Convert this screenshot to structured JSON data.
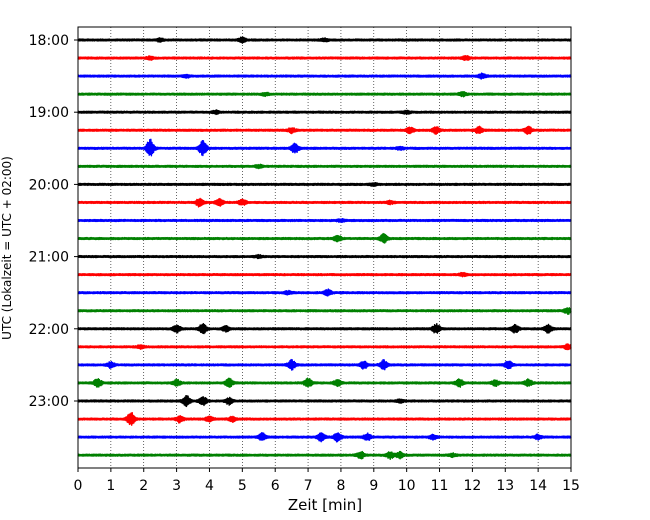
{
  "chart_data": {
    "type": "line",
    "xlabel": "Zeit  [min]",
    "ylabel": "UTC (Lokalzeit = UTC + 02:00)",
    "xlim": [
      0,
      15
    ],
    "x_ticks": [
      "0",
      "1",
      "2",
      "3",
      "4",
      "5",
      "6",
      "7",
      "8",
      "9",
      "10",
      "11",
      "12",
      "13",
      "14",
      "15"
    ],
    "y_ticks": [
      "18:00",
      "19:00",
      "20:00",
      "21:00",
      "22:00",
      "23:00"
    ],
    "grid": "vertical dotted",
    "trace_interval_min": 15,
    "trace_colors": [
      "#000000",
      "#ff0000",
      "#0000ff",
      "#008000"
    ],
    "traces": [
      {
        "start": "18:00",
        "color": "#000000",
        "events": [
          [
            5.0,
            0.25
          ],
          [
            2.5,
            0.15
          ],
          [
            7.5,
            0.15
          ]
        ]
      },
      {
        "start": "18:15",
        "color": "#ff0000",
        "events": [
          [
            2.2,
            0.15
          ],
          [
            11.8,
            0.2
          ]
        ]
      },
      {
        "start": "18:30",
        "color": "#0000ff",
        "events": [
          [
            12.3,
            0.25
          ],
          [
            3.3,
            0.15
          ]
        ]
      },
      {
        "start": "18:45",
        "color": "#008000",
        "events": [
          [
            11.7,
            0.2
          ],
          [
            5.7,
            0.15
          ]
        ]
      },
      {
        "start": "19:00",
        "color": "#000000",
        "events": [
          [
            4.2,
            0.15
          ],
          [
            10.0,
            0.15
          ]
        ]
      },
      {
        "start": "19:15",
        "color": "#ff0000",
        "events": [
          [
            6.5,
            0.25
          ],
          [
            10.1,
            0.3
          ],
          [
            10.9,
            0.35
          ],
          [
            12.2,
            0.35
          ],
          [
            13.7,
            0.4
          ]
        ]
      },
      {
        "start": "19:30",
        "color": "#0000ff",
        "events": [
          [
            2.2,
            1.0
          ],
          [
            3.8,
            0.85
          ],
          [
            6.6,
            0.5
          ],
          [
            9.8,
            0.15
          ]
        ]
      },
      {
        "start": "19:45",
        "color": "#008000",
        "events": [
          [
            5.5,
            0.15
          ]
        ]
      },
      {
        "start": "20:00",
        "color": "#000000",
        "events": [
          [
            9.0,
            0.12
          ]
        ]
      },
      {
        "start": "20:15",
        "color": "#ff0000",
        "events": [
          [
            3.7,
            0.45
          ],
          [
            4.3,
            0.35
          ],
          [
            5.0,
            0.3
          ],
          [
            9.5,
            0.15
          ]
        ]
      },
      {
        "start": "20:30",
        "color": "#0000ff",
        "events": [
          [
            8.0,
            0.12
          ]
        ]
      },
      {
        "start": "20:45",
        "color": "#008000",
        "events": [
          [
            7.9,
            0.3
          ],
          [
            9.3,
            0.45
          ]
        ]
      },
      {
        "start": "21:00",
        "color": "#000000",
        "events": [
          [
            5.5,
            0.12
          ]
        ]
      },
      {
        "start": "21:15",
        "color": "#ff0000",
        "events": [
          [
            11.7,
            0.15
          ]
        ]
      },
      {
        "start": "21:30",
        "color": "#0000ff",
        "events": [
          [
            7.6,
            0.3
          ],
          [
            6.4,
            0.15
          ]
        ]
      },
      {
        "start": "21:45",
        "color": "#008000",
        "events": [
          [
            14.9,
            0.3
          ]
        ]
      },
      {
        "start": "22:00",
        "color": "#000000",
        "events": [
          [
            3.0,
            0.4
          ],
          [
            3.8,
            0.55
          ],
          [
            4.5,
            0.3
          ],
          [
            10.9,
            0.5
          ],
          [
            13.3,
            0.4
          ],
          [
            14.3,
            0.45
          ]
        ]
      },
      {
        "start": "22:15",
        "color": "#ff0000",
        "events": [
          [
            1.9,
            0.15
          ],
          [
            14.9,
            0.25
          ]
        ]
      },
      {
        "start": "22:30",
        "color": "#0000ff",
        "events": [
          [
            1.0,
            0.3
          ],
          [
            6.5,
            0.5
          ],
          [
            8.7,
            0.4
          ],
          [
            9.3,
            0.5
          ],
          [
            13.1,
            0.45
          ]
        ]
      },
      {
        "start": "22:45",
        "color": "#008000",
        "events": [
          [
            0.6,
            0.45
          ],
          [
            3.0,
            0.35
          ],
          [
            4.6,
            0.45
          ],
          [
            7.0,
            0.45
          ],
          [
            7.9,
            0.35
          ],
          [
            11.6,
            0.4
          ],
          [
            12.7,
            0.3
          ],
          [
            13.7,
            0.35
          ]
        ]
      },
      {
        "start": "23:00",
        "color": "#000000",
        "events": [
          [
            3.3,
            0.55
          ],
          [
            3.8,
            0.45
          ],
          [
            4.6,
            0.35
          ],
          [
            9.8,
            0.15
          ]
        ]
      },
      {
        "start": "23:15",
        "color": "#ff0000",
        "events": [
          [
            1.6,
            0.75
          ],
          [
            3.1,
            0.35
          ],
          [
            4.0,
            0.3
          ],
          [
            4.7,
            0.25
          ]
        ]
      },
      {
        "start": "23:30",
        "color": "#0000ff",
        "events": [
          [
            5.6,
            0.4
          ],
          [
            7.4,
            0.45
          ],
          [
            7.9,
            0.45
          ],
          [
            8.8,
            0.35
          ],
          [
            10.8,
            0.25
          ],
          [
            14.0,
            0.25
          ]
        ]
      },
      {
        "start": "23:45",
        "color": "#008000",
        "events": [
          [
            8.6,
            0.35
          ],
          [
            9.5,
            0.35
          ],
          [
            9.8,
            0.3
          ],
          [
            11.4,
            0.15
          ]
        ]
      }
    ]
  }
}
